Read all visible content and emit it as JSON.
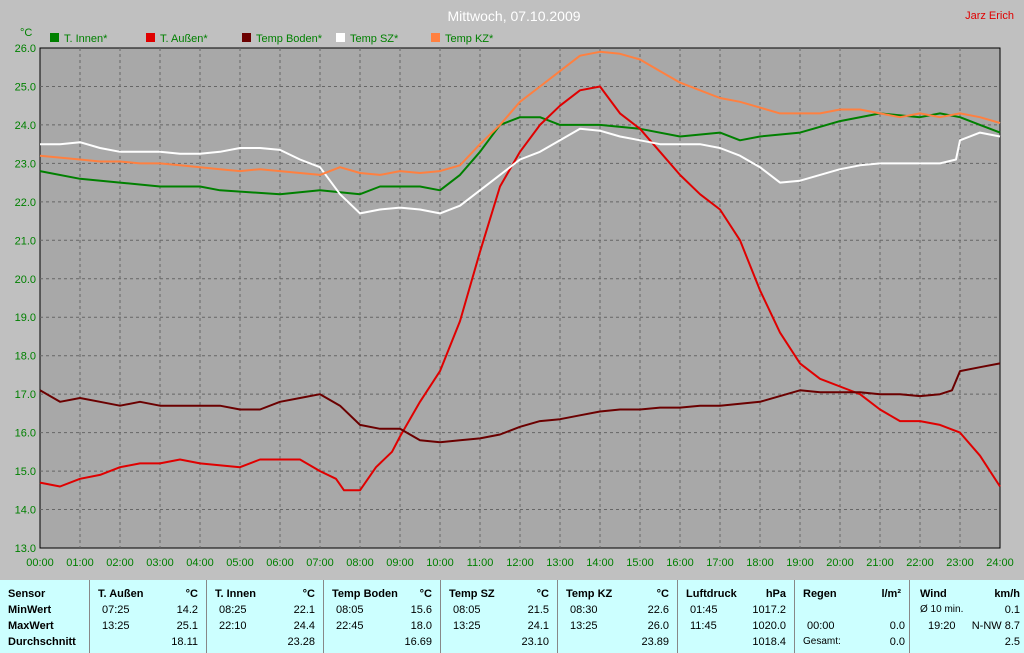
{
  "chart_data": {
    "type": "line",
    "title": "Mittwoch, 07.10.2009",
    "author": "Jarz Erich",
    "ylabel": "°C",
    "ylim": [
      13.0,
      26.0
    ],
    "yticks": [
      "13.0",
      "14.0",
      "15.0",
      "16.0",
      "17.0",
      "18.0",
      "19.0",
      "20.0",
      "21.0",
      "22.0",
      "23.0",
      "24.0",
      "25.0",
      "26.0"
    ],
    "xlim": [
      0,
      24
    ],
    "xticks": [
      "00:00",
      "01:00",
      "02:00",
      "03:00",
      "04:00",
      "05:00",
      "06:00",
      "07:00",
      "08:00",
      "09:00",
      "10:00",
      "11:00",
      "12:00",
      "13:00",
      "14:00",
      "15:00",
      "16:00",
      "17:00",
      "18:00",
      "19:00",
      "20:00",
      "21:00",
      "22:00",
      "23:00",
      "24:00"
    ],
    "grid": true,
    "legend_position": "top",
    "series": [
      {
        "name": "T. Innen*",
        "color": "#008000",
        "x": [
          0,
          1,
          2,
          3,
          4,
          4.5,
          6,
          7,
          8,
          8.5,
          9.5,
          10,
          10.5,
          11,
          11.5,
          12,
          12.5,
          13,
          14,
          15,
          16,
          17,
          17.5,
          18,
          19,
          20,
          21,
          22,
          22.5,
          23,
          23.5,
          24
        ],
        "y": [
          22.8,
          22.6,
          22.5,
          22.4,
          22.4,
          22.3,
          22.2,
          22.3,
          22.2,
          22.4,
          22.4,
          22.3,
          22.7,
          23.3,
          24.0,
          24.2,
          24.2,
          24.0,
          24.0,
          23.9,
          23.7,
          23.8,
          23.6,
          23.7,
          23.8,
          24.1,
          24.3,
          24.2,
          24.3,
          24.2,
          24.0,
          23.8
        ]
      },
      {
        "name": "T. Außen*",
        "color": "#e00000",
        "x": [
          0,
          0.5,
          1,
          1.5,
          2,
          2.5,
          3,
          3.5,
          4,
          5,
          5.5,
          6,
          6.5,
          7,
          7.4,
          7.6,
          8,
          8.4,
          8.8,
          9,
          9.5,
          10,
          10.5,
          11,
          11.5,
          12,
          12.5,
          13,
          13.5,
          14,
          14.5,
          15,
          15.5,
          16,
          16.5,
          17,
          17.5,
          18,
          18.5,
          19,
          19.5,
          20,
          20.5,
          21,
          21.5,
          22,
          22.5,
          23,
          23.5,
          24
        ],
        "y": [
          14.7,
          14.6,
          14.8,
          14.9,
          15.1,
          15.2,
          15.2,
          15.3,
          15.2,
          15.1,
          15.3,
          15.3,
          15.3,
          15.0,
          14.8,
          14.5,
          14.5,
          15.1,
          15.5,
          15.9,
          16.8,
          17.6,
          18.9,
          20.7,
          22.4,
          23.3,
          24.0,
          24.5,
          24.9,
          25.0,
          24.3,
          23.9,
          23.3,
          22.7,
          22.2,
          21.8,
          21.0,
          19.7,
          18.6,
          17.8,
          17.4,
          17.2,
          17.0,
          16.6,
          16.3,
          16.3,
          16.2,
          16.0,
          15.4,
          14.6
        ]
      },
      {
        "name": "Temp Boden*",
        "color": "#6b0000",
        "x": [
          0,
          0.5,
          1,
          1.5,
          2,
          2.5,
          3,
          3.5,
          4,
          4.5,
          5,
          5.5,
          6,
          6.5,
          7,
          7.5,
          8,
          8.5,
          9,
          9.5,
          10,
          10.5,
          11,
          11.5,
          12,
          12.5,
          13,
          13.5,
          14,
          14.5,
          15,
          15.5,
          16,
          16.5,
          17,
          17.5,
          18,
          18.5,
          19,
          19.5,
          20,
          20.5,
          21,
          21.5,
          22,
          22.5,
          22.8,
          23,
          23.5,
          24
        ],
        "y": [
          17.1,
          16.8,
          16.9,
          16.8,
          16.7,
          16.8,
          16.7,
          16.7,
          16.7,
          16.7,
          16.6,
          16.6,
          16.8,
          16.9,
          17.0,
          16.7,
          16.2,
          16.1,
          16.1,
          15.8,
          15.75,
          15.8,
          15.85,
          15.95,
          16.15,
          16.3,
          16.35,
          16.45,
          16.55,
          16.6,
          16.6,
          16.65,
          16.65,
          16.7,
          16.7,
          16.75,
          16.8,
          16.95,
          17.1,
          17.05,
          17.05,
          17.05,
          17.0,
          17.0,
          16.95,
          17.0,
          17.1,
          17.6,
          17.7,
          17.8
        ]
      },
      {
        "name": "Temp SZ*",
        "color": "#ffffff",
        "x": [
          0,
          0.5,
          1,
          1.5,
          2,
          2.5,
          3,
          3.5,
          4,
          4.5,
          5,
          5.5,
          6,
          6.5,
          7,
          7.5,
          8,
          8.5,
          9,
          9.5,
          10,
          10.5,
          11,
          11.5,
          12,
          12.5,
          13,
          13.5,
          14,
          14.5,
          15,
          15.5,
          16,
          16.5,
          17,
          17.5,
          18,
          18.5,
          19,
          19.5,
          20,
          20.5,
          21,
          21.5,
          22,
          22.5,
          22.9,
          23,
          23.5,
          24
        ],
        "y": [
          23.5,
          23.5,
          23.55,
          23.4,
          23.3,
          23.3,
          23.3,
          23.25,
          23.25,
          23.3,
          23.4,
          23.4,
          23.35,
          23.1,
          22.9,
          22.2,
          21.7,
          21.8,
          21.85,
          21.8,
          21.7,
          21.9,
          22.3,
          22.7,
          23.1,
          23.3,
          23.6,
          23.9,
          23.85,
          23.7,
          23.6,
          23.5,
          23.5,
          23.5,
          23.4,
          23.2,
          22.9,
          22.5,
          22.55,
          22.7,
          22.85,
          22.95,
          23.0,
          23.0,
          23.0,
          23.0,
          23.1,
          23.6,
          23.8,
          23.7
        ]
      },
      {
        "name": "Temp KZ*",
        "color": "#ff8040",
        "x": [
          0,
          0.5,
          1,
          1.5,
          2,
          2.5,
          3,
          3.5,
          4,
          4.5,
          5,
          5.5,
          6,
          6.5,
          7,
          7.5,
          8,
          8.5,
          9,
          9.5,
          10,
          10.5,
          11,
          11.5,
          12,
          12.5,
          13,
          13.5,
          14,
          14.5,
          15,
          15.5,
          16,
          16.5,
          17,
          17.5,
          18,
          18.5,
          19,
          19.5,
          20,
          20.5,
          21,
          21.5,
          22,
          22.5,
          23,
          23.5,
          24
        ],
        "y": [
          23.2,
          23.15,
          23.1,
          23.05,
          23.05,
          23.0,
          23.0,
          22.95,
          22.9,
          22.85,
          22.8,
          22.85,
          22.8,
          22.75,
          22.7,
          22.9,
          22.75,
          22.7,
          22.8,
          22.75,
          22.8,
          22.95,
          23.5,
          24.0,
          24.6,
          25.0,
          25.4,
          25.8,
          25.9,
          25.85,
          25.7,
          25.4,
          25.1,
          24.9,
          24.7,
          24.6,
          24.45,
          24.3,
          24.3,
          24.3,
          24.4,
          24.4,
          24.3,
          24.2,
          24.3,
          24.2,
          24.3,
          24.2,
          24.05
        ]
      }
    ]
  },
  "stats": {
    "row_labels": [
      "Sensor",
      "MinWert",
      "MaxWert",
      "Durchschnitt"
    ],
    "columns": [
      {
        "name": "T. Außen",
        "unit": "°C",
        "min_time": "07:25",
        "min_val": "14.2",
        "max_time": "13:25",
        "max_val": "25.1",
        "avg": "18.11"
      },
      {
        "name": "T. Innen",
        "unit": "°C",
        "min_time": "08:25",
        "min_val": "22.1",
        "max_time": "22:10",
        "max_val": "24.4",
        "avg": "23.28"
      },
      {
        "name": "Temp Boden",
        "unit": "°C",
        "min_time": "08:05",
        "min_val": "15.6",
        "max_time": "22:45",
        "max_val": "18.0",
        "avg": "16.69"
      },
      {
        "name": "Temp SZ",
        "unit": "°C",
        "min_time": "08:05",
        "min_val": "21.5",
        "max_time": "13:25",
        "max_val": "24.1",
        "avg": "23.10"
      },
      {
        "name": "Temp KZ",
        "unit": "°C",
        "min_time": "08:30",
        "min_val": "22.6",
        "max_time": "13:25",
        "max_val": "26.0",
        "avg": "23.89"
      },
      {
        "name": "Luftdruck",
        "unit": "hPa",
        "min_time": "01:45",
        "min_val": "1017.2",
        "max_time": "11:45",
        "max_val": "1020.0",
        "avg": "1018.4"
      }
    ],
    "regen": {
      "name": "Regen",
      "unit": "l/m²",
      "row2_time": "00:00",
      "row2_val": "0.0",
      "row3_label": "Gesamt:",
      "row3_val": "0.0"
    },
    "wind": {
      "name": "Wind",
      "unit": "km/h",
      "row1_label": "Ø 10 min.",
      "row1_val": "0.1",
      "row2_time": "19:20",
      "row2_val": "N-NW 8.7",
      "row3_val": "2.5"
    }
  }
}
